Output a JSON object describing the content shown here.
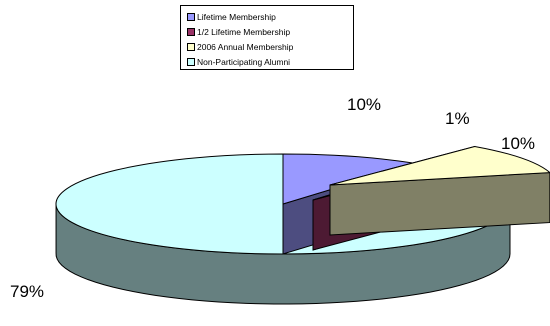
{
  "chart_data": {
    "type": "pie",
    "title": "",
    "three_d": true,
    "exploded": true,
    "legend_position": "top",
    "series": [
      {
        "name": "Lifetime Membership",
        "value": 10,
        "label": "10%",
        "color": "#9999FF",
        "side_color": "#4D4D80"
      },
      {
        "name": "1/2 Lifetime Membership",
        "value": 1,
        "label": "1%",
        "color": "#993366",
        "side_color": "#4D1A33"
      },
      {
        "name": "2006 Annual Membership",
        "value": 10,
        "label": "10%",
        "color": "#FFFFCC",
        "side_color": "#808066"
      },
      {
        "name": "Non-Participating Alumni",
        "value": 79,
        "label": "79%",
        "color": "#CCFFFF",
        "side_color": "#668080"
      }
    ]
  }
}
